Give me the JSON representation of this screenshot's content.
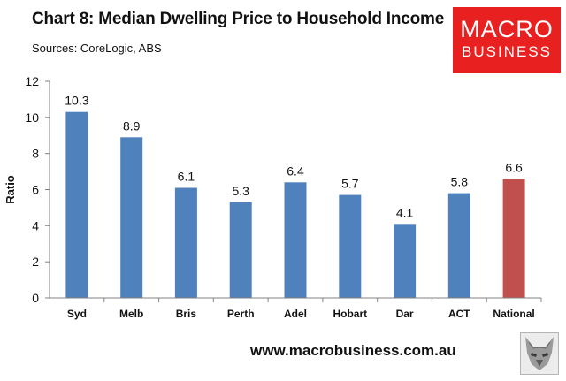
{
  "header": {
    "title": "Chart 8: Median Dwelling Price to Household Income",
    "subtitle": "Sources: CoreLogic, ABS"
  },
  "logo": {
    "line1": "MACRO",
    "line2": "BUSINESS",
    "color": "#e8201f"
  },
  "footer": {
    "url": "www.macrobusiness.com.au",
    "icon": "wolf-icon"
  },
  "colors": {
    "bar": "#4f81bd",
    "highlight": "#c0504d",
    "axis": "#808080"
  },
  "chart_data": {
    "type": "bar",
    "title": "Chart 8: Median Dwelling Price to Household Income",
    "subtitle": "Sources: CoreLogic, ABS",
    "xlabel": "",
    "ylabel": "Ratio",
    "categories": [
      "Syd",
      "Melb",
      "Bris",
      "Perth",
      "Adel",
      "Hobart",
      "Dar",
      "ACT",
      "National"
    ],
    "values": [
      10.3,
      8.9,
      6.1,
      5.3,
      6.4,
      5.7,
      4.1,
      5.8,
      6.6
    ],
    "data_labels": [
      "10.3",
      "8.9",
      "6.1",
      "5.3",
      "6.4",
      "5.7",
      "4.1",
      "5.8",
      "6.6"
    ],
    "highlight_category": "National",
    "ylim": [
      0,
      12
    ],
    "yticks": [
      0,
      2,
      4,
      6,
      8,
      10,
      12
    ],
    "grid": false,
    "legend": "none"
  }
}
